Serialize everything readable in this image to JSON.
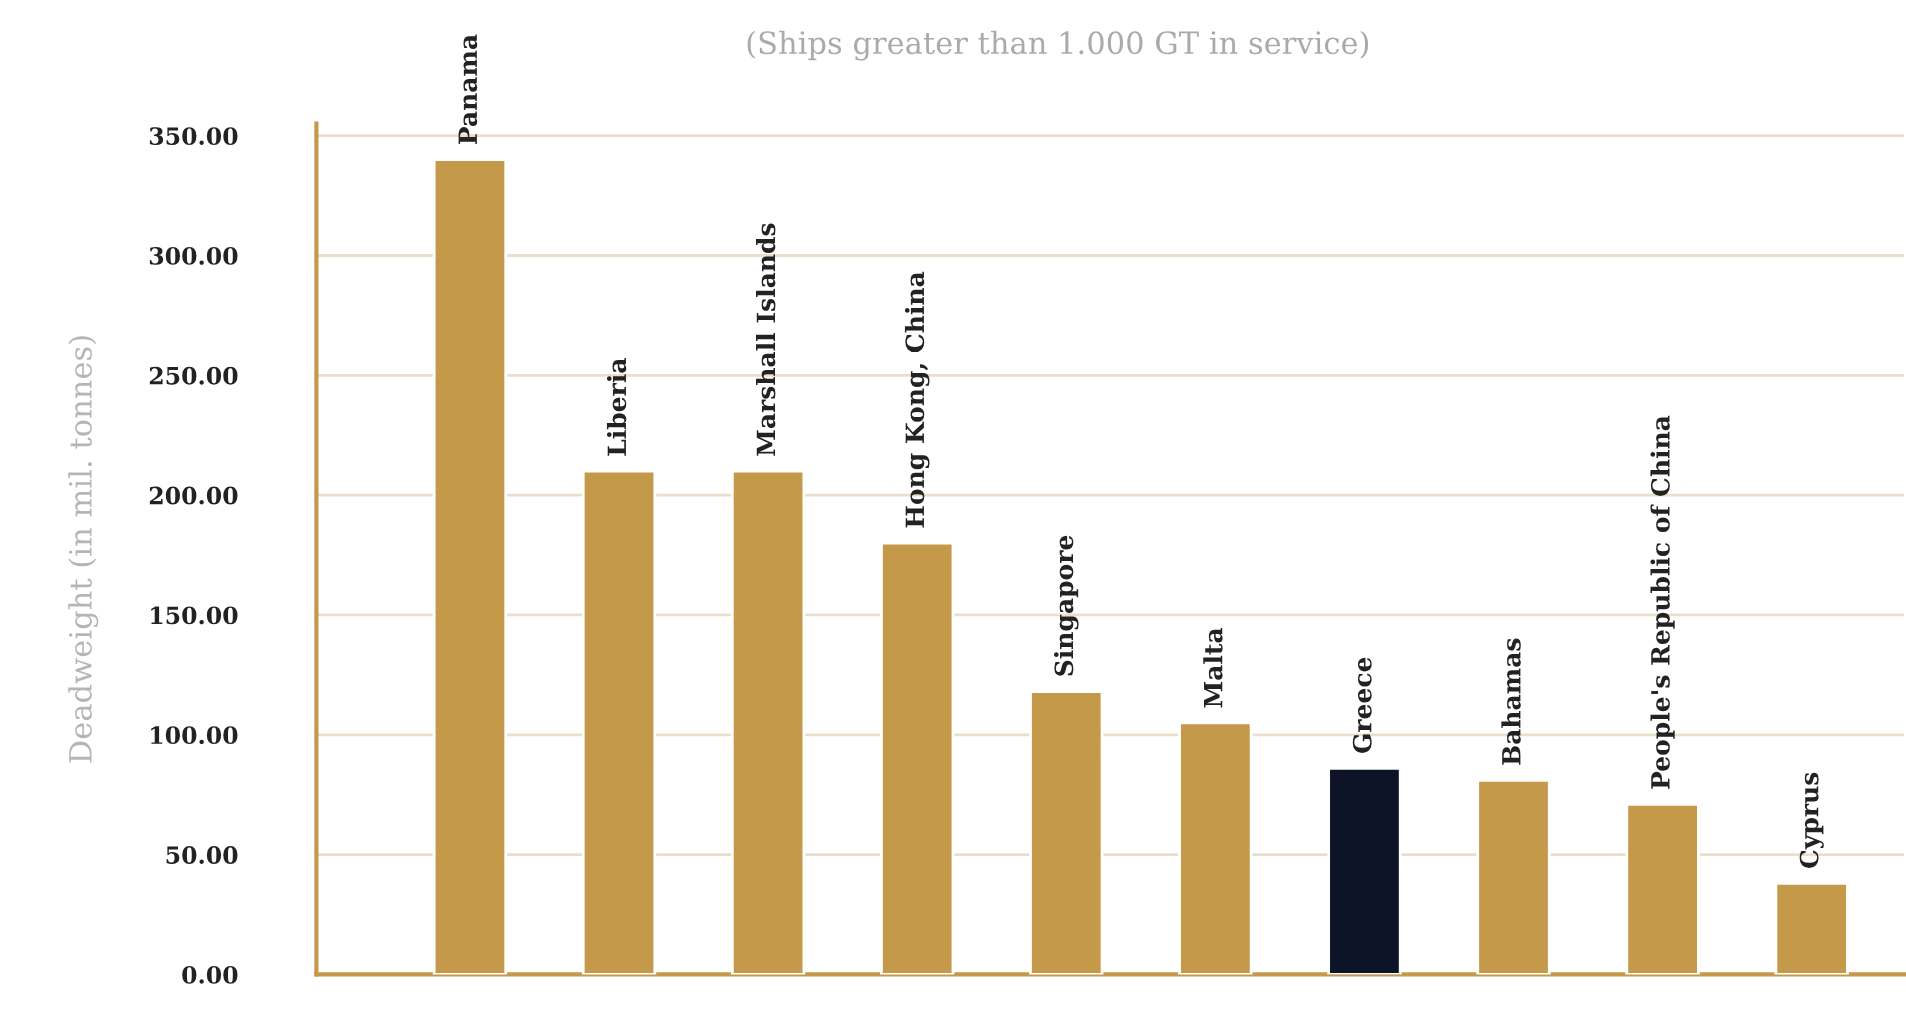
{
  "chart_data": {
    "type": "bar",
    "subtitle": "(Ships greater than 1.000 GT in service)",
    "ylabel": "Deadweight (in mil. tonnes)",
    "categories": [
      "Panama",
      "Liberia",
      "Marshall Islands",
      "Hong Kong, China",
      "Singapore",
      "Malta",
      "Greece",
      "Bahamas",
      "People's Republic of China",
      "Cyprus"
    ],
    "values": [
      340,
      210,
      210,
      180,
      118,
      105,
      86,
      81,
      71,
      38
    ],
    "colors": [
      "#c49a4a",
      "#c49a4a",
      "#c49a4a",
      "#c49a4a",
      "#c49a4a",
      "#c49a4a",
      "#0d1428",
      "#c49a4a",
      "#c49a4a",
      "#c49a4a"
    ],
    "ylim": [
      0,
      355
    ],
    "yticks": [
      {
        "value": 0,
        "label": "0.00"
      },
      {
        "value": 50,
        "label": "50.00"
      },
      {
        "value": 100,
        "label": "100.00"
      },
      {
        "value": 150,
        "label": "150.00"
      },
      {
        "value": 200,
        "label": "200.00"
      },
      {
        "value": 250,
        "label": "250.00"
      },
      {
        "value": 300,
        "label": "300.00"
      },
      {
        "value": 350,
        "label": "350.00"
      }
    ],
    "grid": "y"
  }
}
